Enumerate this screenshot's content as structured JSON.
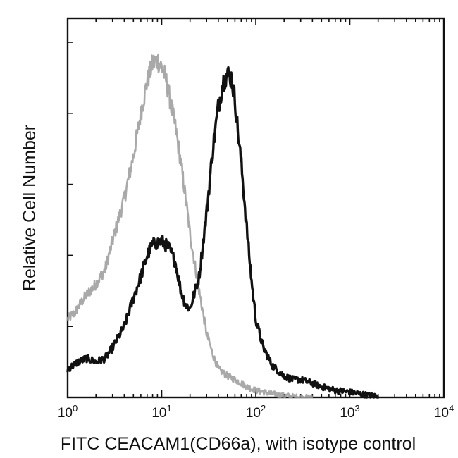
{
  "chart_data": {
    "type": "line",
    "xlabel": "FITC CEACAM1(CD66a), with isotype control",
    "ylabel": "Relative Cell Number",
    "xscale": "log",
    "xlim": [
      1,
      10000
    ],
    "ylim": [
      0,
      100
    ],
    "x_ticks": [
      {
        "base": "10",
        "exp": "0"
      },
      {
        "base": "10",
        "exp": "1"
      },
      {
        "base": "10",
        "exp": "2"
      },
      {
        "base": "10",
        "exp": "3"
      },
      {
        "base": "10",
        "exp": "4"
      }
    ],
    "grid": false,
    "legend": "none",
    "series": [
      {
        "color": "#9a9a9a",
        "style": "light grey noisy line",
        "x": [
          1,
          1.2,
          1.5,
          2,
          2.5,
          3,
          4,
          5,
          6,
          7,
          8,
          9,
          10,
          11,
          12,
          14,
          16,
          18,
          20,
          25,
          30,
          35,
          40,
          50,
          60,
          70,
          80,
          100,
          150,
          200,
          300,
          400
        ],
        "y": [
          22,
          24,
          28,
          32,
          36,
          44,
          56,
          68,
          80,
          89,
          94,
          95,
          93,
          90,
          85,
          76,
          66,
          56,
          46,
          30,
          18,
          12,
          8,
          6,
          5,
          4,
          3,
          2,
          1,
          0.5,
          0,
          0
        ]
      },
      {
        "color": "#111111",
        "style": "black noisy line",
        "x": [
          1,
          1.3,
          1.6,
          2,
          2.5,
          3,
          4,
          5,
          6,
          7,
          8,
          10,
          12,
          14,
          16,
          18,
          20,
          25,
          30,
          35,
          40,
          45,
          50,
          55,
          60,
          65,
          70,
          80,
          90,
          100,
          120,
          150,
          200,
          250,
          300,
          400,
          500,
          700,
          1000,
          1500,
          2000
        ],
        "y": [
          8,
          10,
          11,
          10,
          11,
          14,
          20,
          28,
          34,
          40,
          43,
          44,
          42,
          38,
          30,
          26,
          25,
          34,
          52,
          70,
          82,
          89,
          91,
          90,
          84,
          74,
          66,
          48,
          33,
          22,
          14,
          9,
          6,
          5,
          5,
          4,
          3,
          2,
          1.5,
          0.7,
          0.2
        ]
      }
    ]
  }
}
